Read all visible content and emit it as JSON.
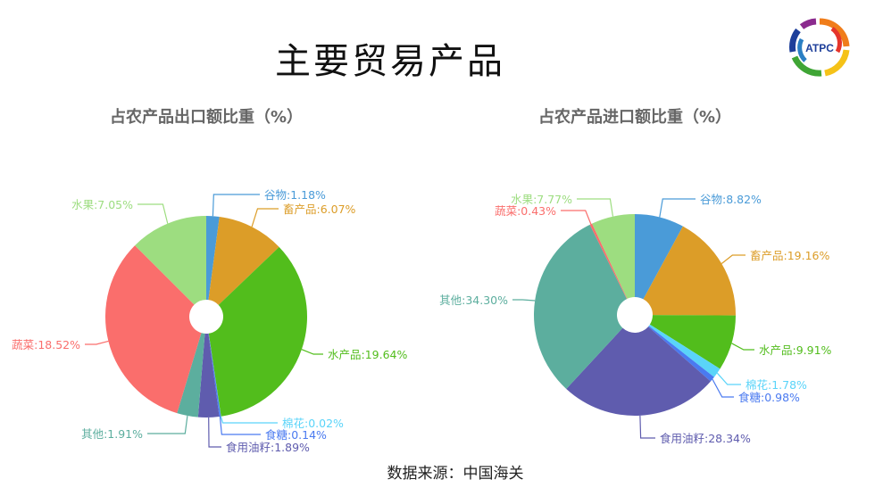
{
  "title": "主要贸易产品",
  "source": "数据来源：中国海关",
  "logo_text": "ATPC",
  "chart_data": [
    {
      "type": "pie",
      "title": "占农产品出口额比重（%）",
      "categories": [
        "谷物",
        "畜产品",
        "水产品",
        "棉花",
        "食糖",
        "食用油籽",
        "其他",
        "蔬菜",
        "水果"
      ],
      "values": [
        1.18,
        6.07,
        19.64,
        0.02,
        0.14,
        1.89,
        1.91,
        18.52,
        7.05
      ],
      "colors": [
        "#4a9bd8",
        "#dc9d28",
        "#52bd1c",
        "#5ad4f9",
        "#4a7af0",
        "#5f5cae",
        "#5cae9e",
        "#fa6e6c",
        "#9ddd80"
      ]
    },
    {
      "type": "pie",
      "title": "占农产品进口额比重（%）",
      "categories": [
        "谷物",
        "畜产品",
        "水产品",
        "棉花",
        "食糖",
        "食用油籽",
        "其他",
        "蔬菜",
        "水果"
      ],
      "values": [
        8.82,
        19.16,
        9.91,
        1.78,
        0.98,
        28.34,
        34.3,
        0.43,
        7.77
      ],
      "colors": [
        "#4a9bd8",
        "#dc9d28",
        "#52bd1c",
        "#5ad4f9",
        "#4a7af0",
        "#5f5cae",
        "#5cae9e",
        "#fa6e6c",
        "#9ddd80"
      ]
    }
  ]
}
